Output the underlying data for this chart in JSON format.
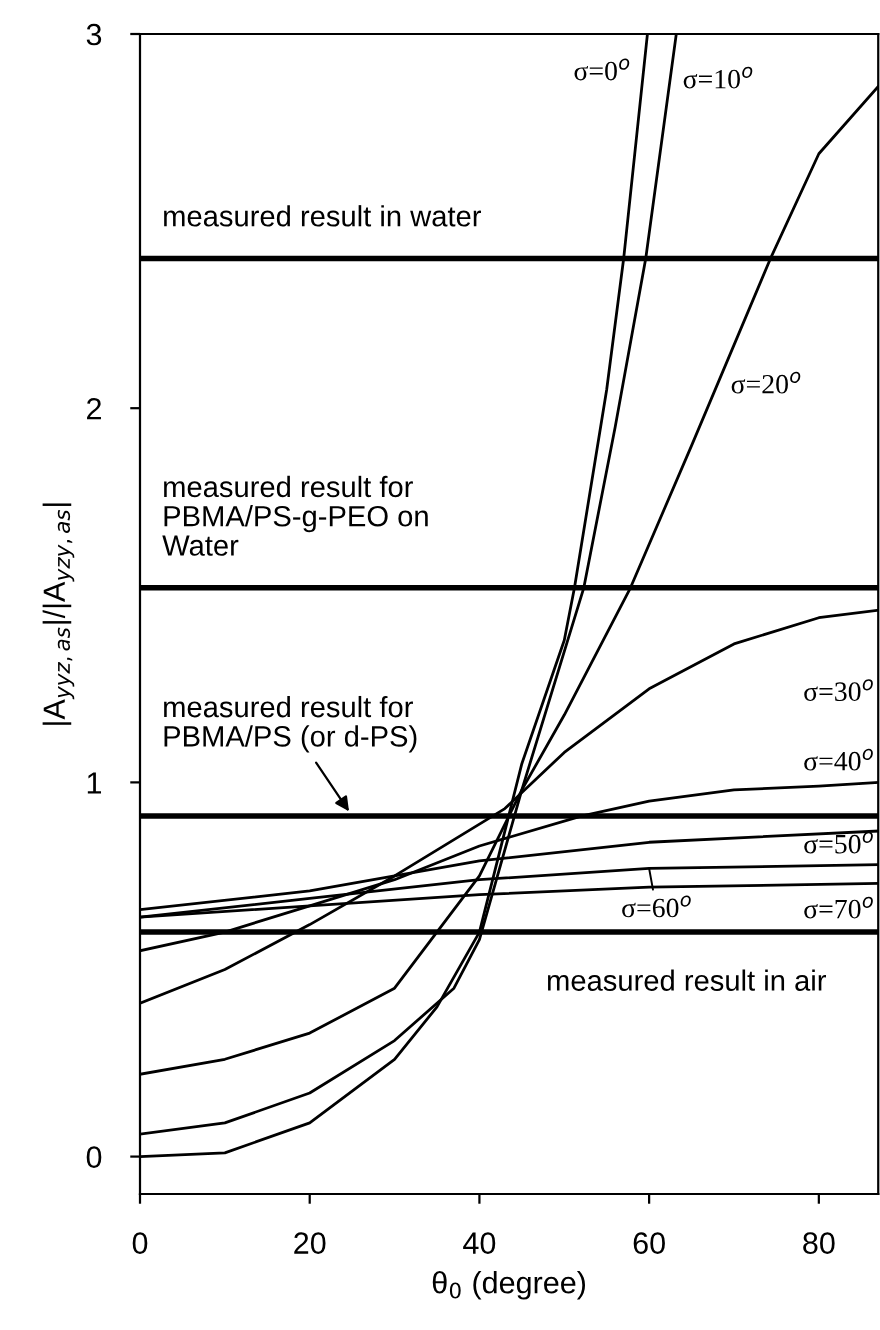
{
  "chart_data": {
    "type": "line",
    "xlabel": "θ$_{0}$ (degree)",
    "ylabel": "|A$_{yyz,as}$|/|A$_{yzy,as}$|",
    "xlim": [
      0,
      87
    ],
    "ylim": [
      -0.1,
      3
    ],
    "xticks": [
      0,
      20,
      40,
      60,
      80
    ],
    "yticks": [
      0,
      1,
      2,
      3
    ],
    "grid": false,
    "marker": "none",
    "line_style": "solid",
    "series": [
      {
        "name": "σ=0$^{o}$",
        "color": "#000000",
        "x": [
          0,
          10,
          20,
          30,
          35,
          40,
          45,
          50,
          51.2,
          55,
          57,
          59.8
        ],
        "values": [
          0,
          0.01,
          0.09,
          0.26,
          0.4,
          0.6,
          1.05,
          1.38,
          1.52,
          2.05,
          2.4,
          3.0
        ]
      },
      {
        "name": "σ=10$^{o}$",
        "color": "#000000",
        "x": [
          0,
          10,
          20,
          30,
          37,
          40,
          45,
          52.3,
          56,
          59.6,
          63.2
        ],
        "values": [
          0.06,
          0.09,
          0.17,
          0.31,
          0.45,
          0.58,
          0.98,
          1.52,
          1.95,
          2.4,
          3.0
        ]
      },
      {
        "name": "σ=20$^{o}$",
        "color": "#000000",
        "x": [
          0,
          10,
          20,
          30,
          40,
          45,
          50,
          57.8,
          65,
          74.3,
          80,
          87
        ],
        "values": [
          0.22,
          0.26,
          0.33,
          0.45,
          0.75,
          0.98,
          1.18,
          1.52,
          1.9,
          2.4,
          2.68,
          2.86
        ]
      },
      {
        "name": "σ=30$^{o}$",
        "color": "#000000",
        "x": [
          0,
          10,
          20,
          30,
          43,
          50,
          60,
          70,
          80,
          87
        ],
        "values": [
          0.41,
          0.5,
          0.62,
          0.75,
          0.93,
          1.08,
          1.25,
          1.37,
          1.44,
          1.46
        ]
      },
      {
        "name": "σ=40$^{o}$",
        "color": "#000000",
        "x": [
          0,
          10,
          20,
          30,
          40,
          52,
          60,
          70,
          80,
          87
        ],
        "values": [
          0.55,
          0.6,
          0.67,
          0.74,
          0.83,
          0.91,
          0.95,
          0.98,
          0.99,
          1.0
        ]
      },
      {
        "name": "σ=50$^{o}$",
        "color": "#000000",
        "x": [
          0,
          20,
          40,
          60,
          87
        ],
        "values": [
          0.66,
          0.71,
          0.79,
          0.84,
          0.87
        ]
      },
      {
        "name": "σ=60$^{o}$",
        "color": "#000000",
        "x": [
          0,
          20,
          40,
          60,
          87
        ],
        "values": [
          0.64,
          0.69,
          0.74,
          0.77,
          0.78
        ]
      },
      {
        "name": "σ=70$^{o}$",
        "color": "#000000",
        "x": [
          0,
          20,
          40,
          60,
          87
        ],
        "values": [
          0.64,
          0.67,
          0.7,
          0.72,
          0.73
        ]
      }
    ],
    "ref_lines": [
      {
        "axis": "y",
        "value": 2.4,
        "label": "measured result in water",
        "color": "#000000"
      },
      {
        "axis": "y",
        "value": 1.52,
        "label": "measured result for\nPBMA/PS-g-PEO on\nWater",
        "color": "#000000"
      },
      {
        "axis": "y",
        "value": 0.91,
        "label": "measured result for\nPBMA/PS (or d-PS)",
        "color": "#000000"
      },
      {
        "axis": "y",
        "value": 0.6,
        "label": "measured result in air",
        "color": "#000000"
      }
    ]
  }
}
